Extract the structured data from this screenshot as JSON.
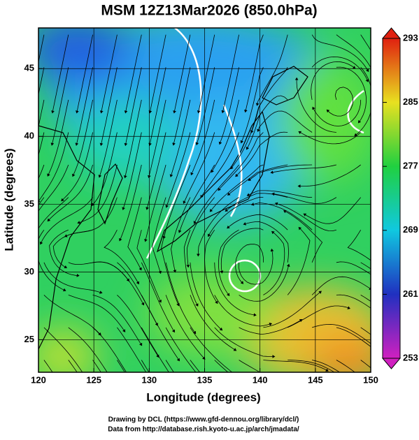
{
  "title": "MSM 12Z13Mar2026 (850.0hPa)",
  "x_axis": {
    "label": "Longitude (degrees)",
    "lim": [
      120,
      150
    ],
    "ticks": [
      120,
      125,
      130,
      135,
      140,
      145,
      150
    ]
  },
  "y_axis": {
    "label": "Latitude  (degrees)",
    "lim": [
      22.6,
      48.0
    ],
    "ticks": [
      25,
      30,
      35,
      40,
      45
    ]
  },
  "colorbar": {
    "lim": [
      253,
      293
    ],
    "ticks": [
      253,
      261,
      269,
      277,
      285,
      293
    ]
  },
  "credits": [
    "Drawing by DCL (https://www.gfd-dennou.org/library/dcl/)",
    "Data from http://database.rish.kyoto-u.ac.jp/arch/jmadata/"
  ]
}
